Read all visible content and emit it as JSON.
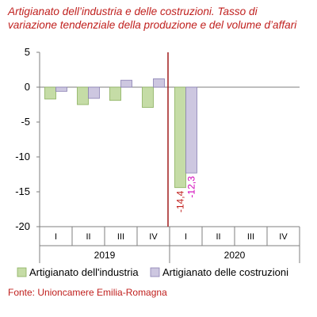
{
  "title_lines": [
    "Artigianato dell’industria e delle costruzioni. Tasso di",
    "variazione tendenziale della produzione e del volume d’affari"
  ],
  "source": "Fonte: Unioncamere Emilia-Romagna",
  "colors": {
    "title": "#c0201e",
    "industria": "#c5dca6",
    "industria_border": "#8ab05e",
    "costruzioni": "#cdc7e0",
    "costruzioni_border": "#8a80b3",
    "divider": "#a01c1c",
    "label_industria": "#c0201e",
    "label_costruzioni": "#d100b8"
  },
  "chart_data": {
    "type": "bar",
    "categories": [
      "I",
      "II",
      "III",
      "IV",
      "I",
      "II",
      "III",
      "IV"
    ],
    "groups": [
      {
        "label": "2019",
        "categories": [
          "I",
          "II",
          "III",
          "IV"
        ]
      },
      {
        "label": "2020",
        "categories": [
          "I",
          "II",
          "III",
          "IV"
        ]
      }
    ],
    "series": [
      {
        "name": "Artigianato dell'industria",
        "values": [
          -1.7,
          -2.5,
          -1.9,
          -2.9,
          -14.4,
          null,
          null,
          null
        ]
      },
      {
        "name": "Artigianato delle costruzioni",
        "values": [
          -0.6,
          -1.6,
          1.0,
          1.2,
          -12.3,
          null,
          null,
          null
        ]
      }
    ],
    "data_labels": [
      {
        "series": 0,
        "index": 4,
        "text": "-14,4"
      },
      {
        "series": 1,
        "index": 4,
        "text": "-12,3"
      }
    ],
    "yticks": [
      "5",
      "0",
      "-5",
      "-10",
      "-15",
      "-20"
    ],
    "ytick_values": [
      5,
      0,
      -5,
      -10,
      -15,
      -20
    ],
    "ylim": [
      -20,
      5
    ],
    "grid": false,
    "legend_position": "bottom",
    "divider_after_index": 3
  }
}
